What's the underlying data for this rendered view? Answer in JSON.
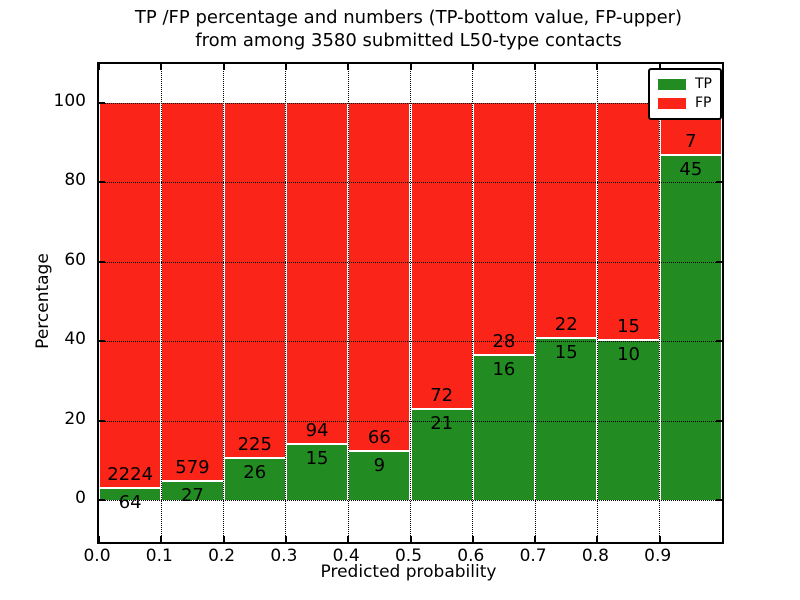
{
  "title": {
    "line1": "TP /FP percentage and numbers (TP-bottom value, FP-upper)",
    "line2": "from among 3580 submitted L50-type contacts"
  },
  "chart_data": {
    "type": "bar",
    "subtype": "stacked-percentage-histogram",
    "title": "TP /FP percentage and numbers (TP-bottom value, FP-upper) from among 3580 submitted L50-type contacts",
    "xlabel": "Predicted probability",
    "ylabel": "Percentage",
    "x_tick_labels": [
      "0.0",
      "0.1",
      "0.2",
      "0.3",
      "0.4",
      "0.5",
      "0.6",
      "0.7",
      "0.8",
      "0.9"
    ],
    "y_ticks": [
      0,
      20,
      40,
      60,
      80,
      100
    ],
    "xlim": [
      0.0,
      1.0
    ],
    "ylim": [
      -10.6,
      109.8
    ],
    "bin_width": 0.1,
    "categories": [
      "0.0-0.1",
      "0.1-0.2",
      "0.2-0.3",
      "0.3-0.4",
      "0.4-0.5",
      "0.5-0.6",
      "0.6-0.7",
      "0.7-0.8",
      "0.8-0.9",
      "0.9-1.0"
    ],
    "series": [
      {
        "name": "TP",
        "color": "#228b22",
        "counts": [
          64,
          27,
          26,
          15,
          9,
          21,
          16,
          15,
          10,
          45
        ]
      },
      {
        "name": "FP",
        "color": "#fa2418",
        "counts": [
          2224,
          579,
          225,
          94,
          66,
          72,
          28,
          22,
          15,
          7
        ]
      }
    ],
    "tp_percent": [
      2.8,
      4.46,
      10.36,
      13.76,
      12.0,
      22.58,
      36.36,
      40.54,
      40.0,
      86.54
    ],
    "grid": true,
    "bar_edge_color": "#ffffff",
    "legend": {
      "position": "upper right",
      "entries": [
        {
          "label": "TP",
          "color": "#228b22"
        },
        {
          "label": "FP",
          "color": "#fa2418"
        }
      ]
    }
  }
}
